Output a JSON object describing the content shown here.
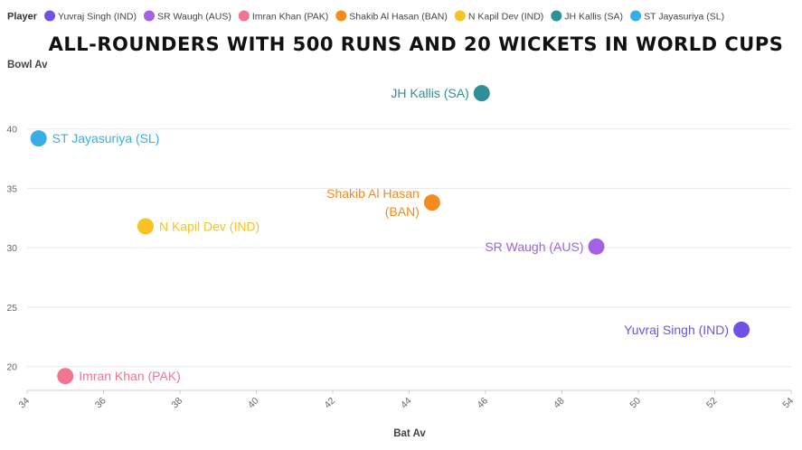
{
  "chart_data": {
    "type": "scatter",
    "title": "ALL-ROUNDERS WITH 500 RUNS AND 20 WICKETS IN WORLD CUPS",
    "xlabel": "Bat Av",
    "ylabel": "Bowl Av",
    "legend_title": "Player",
    "legend_position": "top-left",
    "xlim": [
      34,
      54
    ],
    "ylim": [
      18,
      44
    ],
    "xticks": [
      34,
      36,
      38,
      40,
      42,
      44,
      46,
      48,
      50,
      52,
      54
    ],
    "yticks": [
      20,
      25,
      30,
      35,
      40
    ],
    "grid": true,
    "series": [
      {
        "name": "Yuvraj Singh (IND)",
        "color": "#6f52e3",
        "x": 52.7,
        "y": 23.1,
        "label": "Yuvraj Singh (IND)",
        "label_side": "left"
      },
      {
        "name": "SR Waugh (AUS)",
        "color": "#a461e0",
        "x": 48.9,
        "y": 30.1,
        "label": "SR Waugh (AUS)",
        "label_side": "left"
      },
      {
        "name": "Imran Khan (PAK)",
        "color": "#f07590",
        "x": 35.0,
        "y": 19.2,
        "label": "Imran Khan (PAK)",
        "label_side": "right"
      },
      {
        "name": "Shakib Al Hasan (BAN)",
        "color": "#f28c1e",
        "x": 44.6,
        "y": 33.8,
        "label": "Shakib Al Hasan (BAN)",
        "label_lines": [
          "Shakib Al Hasan",
          "(BAN)"
        ],
        "label_side": "left"
      },
      {
        "name": "N Kapil Dev (IND)",
        "color": "#f6c323",
        "x": 37.1,
        "y": 31.8,
        "label": "N Kapil Dev (IND)",
        "label_side": "right"
      },
      {
        "name": "JH Kallis (SA)",
        "color": "#2e8f96",
        "x": 45.9,
        "y": 43.0,
        "label": "JH Kallis (SA)",
        "label_side": "left"
      },
      {
        "name": "ST Jayasuriya (SL)",
        "color": "#37aee8",
        "x": 34.3,
        "y": 39.2,
        "label": "ST Jayasuriya (SL)",
        "label_side": "right"
      }
    ]
  }
}
